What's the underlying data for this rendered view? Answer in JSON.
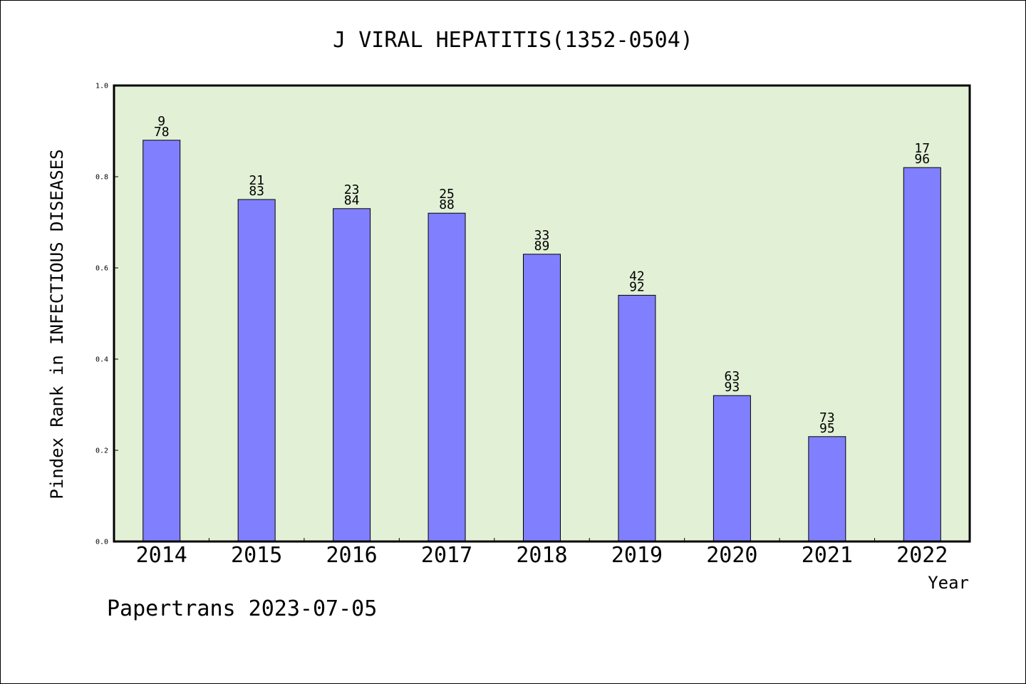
{
  "chart_data": {
    "type": "bar",
    "title": "J VIRAL HEPATITIS(1352-0504)",
    "xlabel": "Year",
    "ylabel": "Pindex Rank in INFECTIOUS DISEASES",
    "footer": "Papertrans 2023-07-05",
    "categories": [
      "2014",
      "2015",
      "2016",
      "2017",
      "2018",
      "2019",
      "2020",
      "2021",
      "2022"
    ],
    "values": [
      0.88,
      0.75,
      0.73,
      0.72,
      0.63,
      0.54,
      0.32,
      0.23,
      0.82
    ],
    "labels_top": [
      "9",
      "21",
      "23",
      "25",
      "33",
      "42",
      "63",
      "73",
      "17"
    ],
    "labels_bottom": [
      "78",
      "83",
      "84",
      "88",
      "89",
      "92",
      "93",
      "95",
      "96"
    ],
    "ylim": [
      0,
      1.0
    ],
    "yticks": [
      "0.0",
      "0.2",
      "0.4",
      "0.6",
      "0.8",
      "1.0"
    ],
    "grid": false,
    "colors": {
      "plot_background": "#e2f0d6",
      "bar_fill": "#8080ff",
      "bar_stroke": "#000000"
    }
  }
}
